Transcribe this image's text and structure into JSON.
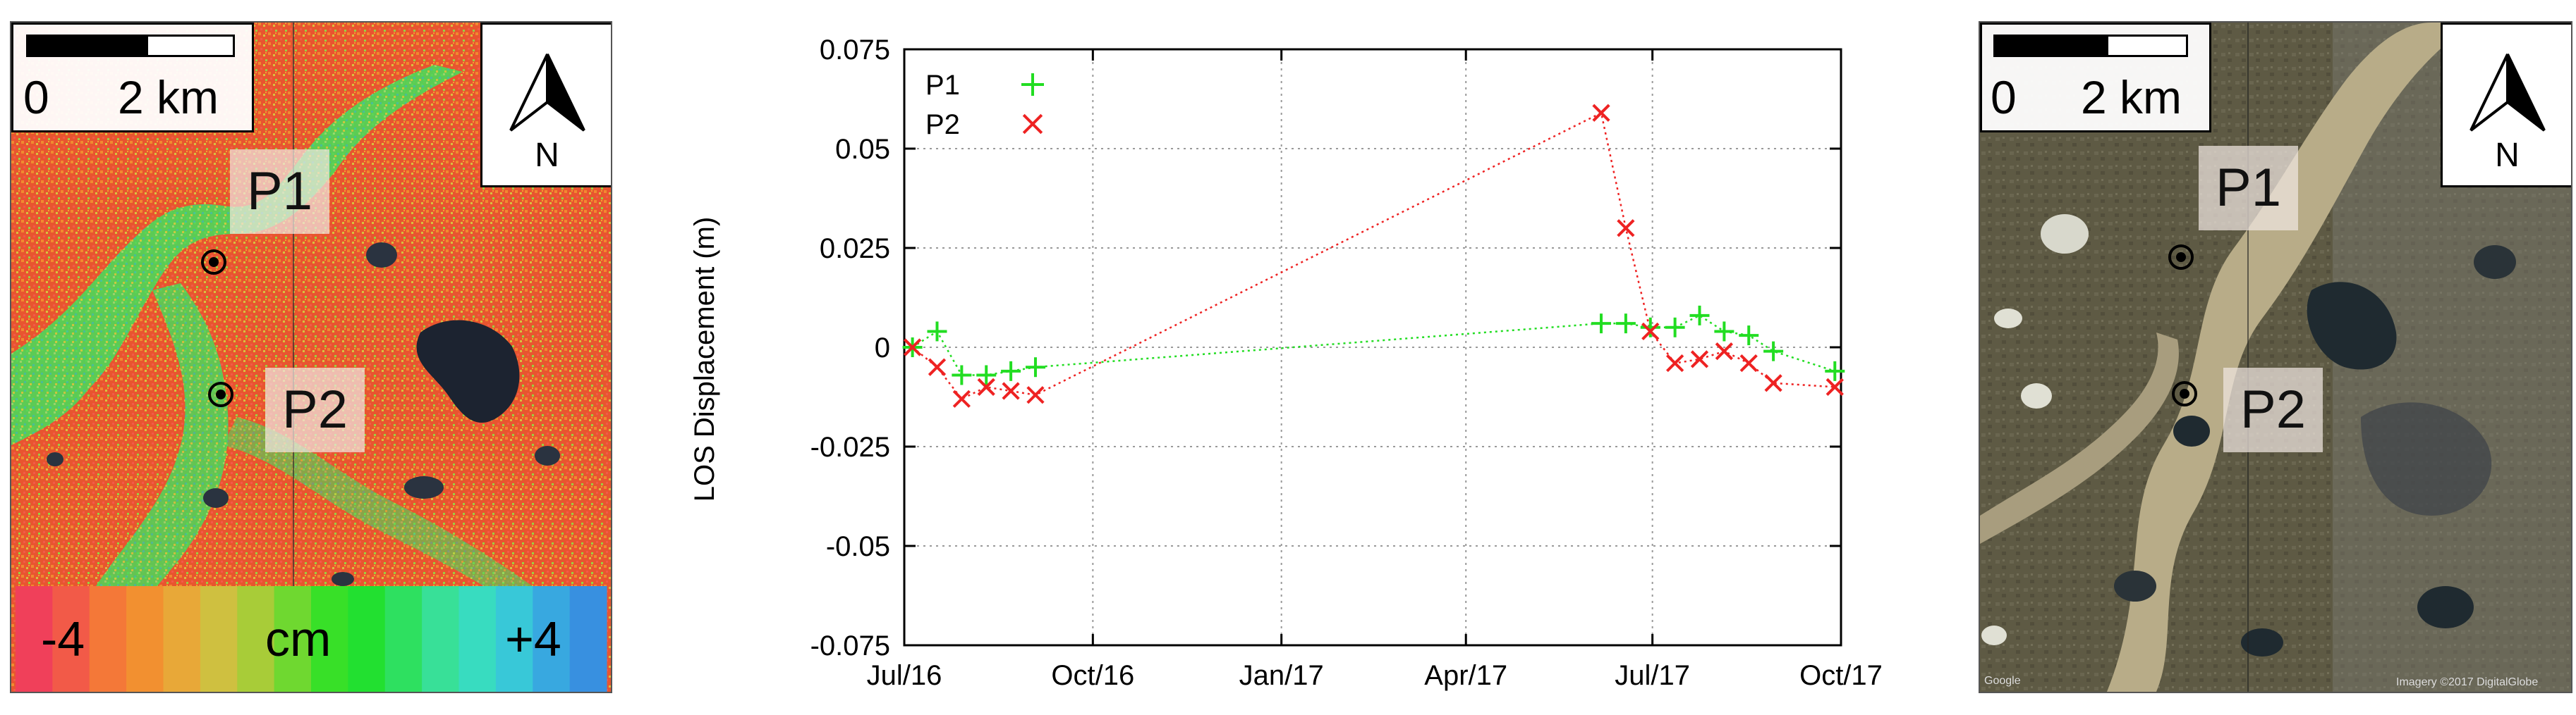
{
  "left_map": {
    "scale_zero": "0",
    "scale_end": "2 km",
    "north": "N",
    "p1_label": "P1",
    "p2_label": "P2",
    "colorbar_min": "-4",
    "colorbar_unit": "cm",
    "colorbar_max": "+4",
    "colorbar_colors": [
      "#f0405a",
      "#f25a48",
      "#f47838",
      "#f29030",
      "#e8a838",
      "#cfc040",
      "#a8cc38",
      "#6fd830",
      "#38e028",
      "#22e030",
      "#2ee060",
      "#38e098",
      "#38dcc0",
      "#38c8d8",
      "#38a8e0",
      "#3890e0"
    ]
  },
  "right_map": {
    "scale_zero": "0",
    "scale_end": "2 km",
    "north": "N",
    "p1_label": "P1",
    "p2_label": "P2",
    "credit_left": "Google",
    "credit_right": "Imagery ©2017 DigitalGlobe"
  },
  "chart_data": {
    "type": "scatter",
    "ylabel": "LOS Displacement (m)",
    "xlabel": "",
    "x_ticks": [
      "Jul/16",
      "Oct/16",
      "Jan/17",
      "Apr/17",
      "Jul/17",
      "Oct/17"
    ],
    "x_tick_days": [
      0,
      92,
      184,
      274,
      365,
      457
    ],
    "xlim": [
      0,
      457
    ],
    "ylim": [
      -0.075,
      0.075
    ],
    "y_ticks": [
      -0.075,
      -0.05,
      -0.025,
      0,
      0.025,
      0.05,
      0.075
    ],
    "y_tick_labels": [
      "-0.075",
      "-0.05",
      "-0.025",
      "0",
      "0.025",
      "0.05",
      "0.075"
    ],
    "grid": true,
    "legend_position": "top-left",
    "series": [
      {
        "name": "P1",
        "marker": "plus",
        "color": "#22dd22",
        "points": [
          {
            "date": "2016-07-05",
            "x": 4,
            "y": 0.0
          },
          {
            "date": "2016-07-17",
            "x": 16,
            "y": 0.004
          },
          {
            "date": "2016-07-29",
            "x": 28,
            "y": -0.007
          },
          {
            "date": "2016-08-10",
            "x": 40,
            "y": -0.007
          },
          {
            "date": "2016-08-22",
            "x": 52,
            "y": -0.006
          },
          {
            "date": "2016-09-03",
            "x": 64,
            "y": -0.005
          },
          {
            "date": "2017-06-06",
            "x": 340,
            "y": 0.006
          },
          {
            "date": "2017-06-18",
            "x": 352,
            "y": 0.006
          },
          {
            "date": "2017-06-30",
            "x": 364,
            "y": 0.005
          },
          {
            "date": "2017-07-12",
            "x": 376,
            "y": 0.005
          },
          {
            "date": "2017-07-24",
            "x": 388,
            "y": 0.008
          },
          {
            "date": "2017-08-05",
            "x": 400,
            "y": 0.004
          },
          {
            "date": "2017-08-17",
            "x": 412,
            "y": 0.003
          },
          {
            "date": "2017-08-29",
            "x": 424,
            "y": -0.001
          },
          {
            "date": "2017-09-28",
            "x": 454,
            "y": -0.006
          }
        ]
      },
      {
        "name": "P2",
        "marker": "cross",
        "color": "#ee2222",
        "points": [
          {
            "date": "2016-07-05",
            "x": 4,
            "y": 0.0
          },
          {
            "date": "2016-07-17",
            "x": 16,
            "y": -0.005
          },
          {
            "date": "2016-07-29",
            "x": 28,
            "y": -0.013
          },
          {
            "date": "2016-08-10",
            "x": 40,
            "y": -0.01
          },
          {
            "date": "2016-08-22",
            "x": 52,
            "y": -0.011
          },
          {
            "date": "2016-09-03",
            "x": 64,
            "y": -0.012
          },
          {
            "date": "2017-06-06",
            "x": 340,
            "y": 0.059
          },
          {
            "date": "2017-06-18",
            "x": 352,
            "y": 0.03
          },
          {
            "date": "2017-06-30",
            "x": 364,
            "y": 0.004
          },
          {
            "date": "2017-07-12",
            "x": 376,
            "y": -0.004
          },
          {
            "date": "2017-07-24",
            "x": 388,
            "y": -0.003
          },
          {
            "date": "2017-08-05",
            "x": 400,
            "y": -0.001
          },
          {
            "date": "2017-08-17",
            "x": 412,
            "y": -0.004
          },
          {
            "date": "2017-08-29",
            "x": 424,
            "y": -0.009
          },
          {
            "date": "2017-09-28",
            "x": 454,
            "y": -0.01
          }
        ]
      }
    ]
  }
}
